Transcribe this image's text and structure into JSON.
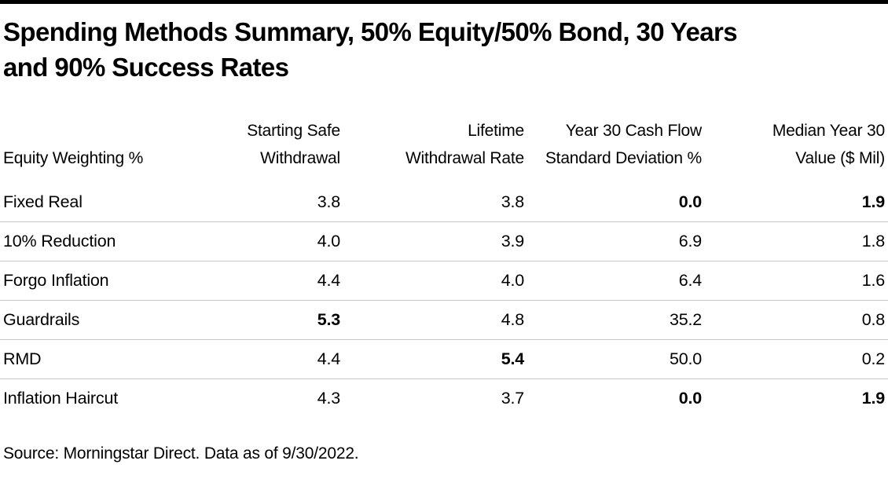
{
  "title": {
    "line1": "Spending Methods Summary, 50% Equity/50% Bond, 30 Years",
    "line2": "and 90% Success Rates"
  },
  "colors": {
    "top_bar": "#000000",
    "separator": "#c8c8c8",
    "text": "#000000"
  },
  "table": {
    "columns": [
      {
        "label": "Equity Weighting %"
      },
      {
        "label": "Starting Safe\nWithdrawal"
      },
      {
        "label": "Lifetime\nWithdrawal Rate"
      },
      {
        "label": "Year 30 Cash Flow\nStandard Deviation %"
      },
      {
        "label": "Median Year 30\nValue ($ Mil)"
      }
    ],
    "rows": [
      {
        "label": "Fixed Real",
        "values": [
          "3.8",
          "3.8",
          "0.0",
          "1.9"
        ],
        "bold": [
          false,
          false,
          true,
          true
        ]
      },
      {
        "label": "10% Reduction",
        "values": [
          "4.0",
          "3.9",
          "6.9",
          "1.8"
        ],
        "bold": [
          false,
          false,
          false,
          false
        ]
      },
      {
        "label": "Forgo Inflation",
        "values": [
          "4.4",
          "4.0",
          "6.4",
          "1.6"
        ],
        "bold": [
          false,
          false,
          false,
          false
        ]
      },
      {
        "label": "Guardrails",
        "values": [
          "5.3",
          "4.8",
          "35.2",
          "0.8"
        ],
        "bold": [
          true,
          false,
          false,
          false
        ]
      },
      {
        "label": "RMD",
        "values": [
          "4.4",
          "5.4",
          "50.0",
          "0.2"
        ],
        "bold": [
          false,
          true,
          false,
          false
        ]
      },
      {
        "label": "Inflation Haircut",
        "values": [
          "4.3",
          "3.7",
          "0.0",
          "1.9"
        ],
        "bold": [
          false,
          false,
          true,
          true
        ]
      }
    ]
  },
  "footer": {
    "source": "Source: Morningstar Direct. Data as of 9/30/2022."
  },
  "chart_data": {
    "type": "table",
    "title": "Spending Methods Summary, 50% Equity/50% Bond, 30 Years and 90% Success Rates",
    "columns": [
      "Equity Weighting %",
      "Starting Safe Withdrawal",
      "Lifetime Withdrawal Rate",
      "Year 30 Cash Flow Standard Deviation %",
      "Median Year 30 Value ($ Mil)"
    ],
    "rows": [
      [
        "Fixed Real",
        3.8,
        3.8,
        0.0,
        1.9
      ],
      [
        "10% Reduction",
        4.0,
        3.9,
        6.9,
        1.8
      ],
      [
        "Forgo Inflation",
        4.4,
        4.0,
        6.4,
        1.6
      ],
      [
        "Guardrails",
        5.3,
        4.8,
        35.2,
        0.8
      ],
      [
        "RMD",
        4.4,
        5.4,
        50.0,
        0.2
      ],
      [
        "Inflation Haircut",
        4.3,
        3.7,
        0.0,
        1.9
      ]
    ],
    "bold_highlighted_cells": [
      {
        "row": "Fixed Real",
        "columns": [
          "Year 30 Cash Flow Standard Deviation %",
          "Median Year 30 Value ($ Mil)"
        ]
      },
      {
        "row": "Guardrails",
        "columns": [
          "Starting Safe Withdrawal"
        ]
      },
      {
        "row": "RMD",
        "columns": [
          "Lifetime Withdrawal Rate"
        ]
      },
      {
        "row": "Inflation Haircut",
        "columns": [
          "Year 30 Cash Flow Standard Deviation %",
          "Median Year 30 Value ($ Mil)"
        ]
      }
    ],
    "source": "Source: Morningstar Direct. Data as of 9/30/2022."
  }
}
